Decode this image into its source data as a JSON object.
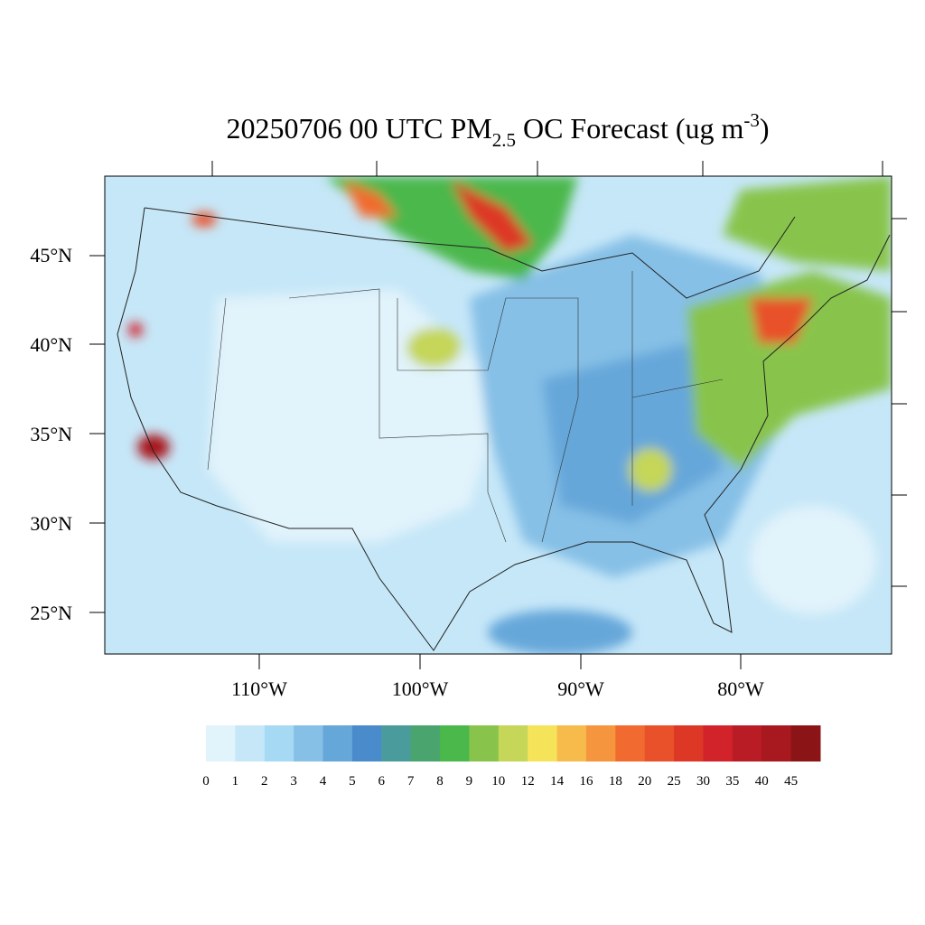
{
  "title": {
    "main": "20250706 00 UTC PM",
    "sub": "2.5",
    "mid": " OC Forecast (ug m",
    "sup": "-3",
    "end": ")"
  },
  "map": {
    "lat_labels": [
      "45°N",
      "40°N",
      "35°N",
      "30°N",
      "25°N"
    ],
    "lon_labels": [
      "110°W",
      "100°W",
      "90°W",
      "80°W"
    ]
  },
  "colorbar": {
    "levels": [
      0,
      1,
      2,
      3,
      4,
      5,
      6,
      7,
      8,
      9,
      10,
      12,
      14,
      16,
      18,
      20,
      25,
      30,
      35,
      40,
      45
    ],
    "colors": [
      "#e1f3fb",
      "#c6e7f8",
      "#a5d9f4",
      "#86c0e6",
      "#66a7da",
      "#4a8bcc",
      "#4a9c9c",
      "#49a56d",
      "#4bb84b",
      "#88c44c",
      "#c5d658",
      "#f5e35a",
      "#f6bb4b",
      "#f5953d",
      "#f16a2f",
      "#e8512a",
      "#dd3726",
      "#d2222a",
      "#b91c24",
      "#a8181f",
      "#8b1516"
    ]
  }
}
